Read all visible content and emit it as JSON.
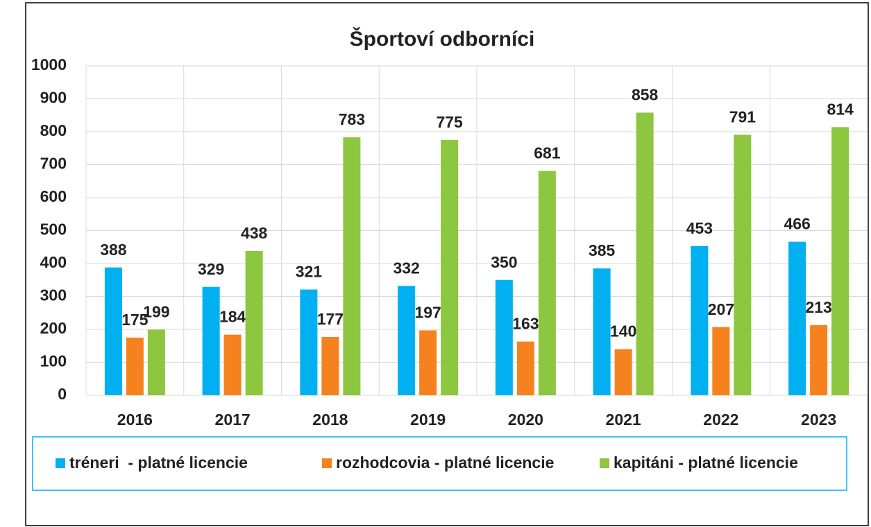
{
  "chart_data": {
    "type": "bar",
    "title": "Športoví odborníci",
    "categories": [
      "2016",
      "2017",
      "2018",
      "2019",
      "2020",
      "2021",
      "2022",
      "2023"
    ],
    "series": [
      {
        "name": "tréneri  - platné licencie",
        "color": "#00b0f0",
        "values": [
          388,
          329,
          321,
          332,
          350,
          385,
          453,
          466
        ]
      },
      {
        "name": "rozhodcovia - platné licencie",
        "color": "#f5821f",
        "values": [
          175,
          184,
          177,
          197,
          163,
          140,
          207,
          213
        ]
      },
      {
        "name": "kapitáni - platné licencie",
        "color": "#8dc63f",
        "values": [
          199,
          438,
          783,
          775,
          681,
          858,
          791,
          814
        ]
      }
    ],
    "ylim": [
      0,
      1000
    ],
    "yticks": [
      0,
      100,
      200,
      300,
      400,
      500,
      600,
      700,
      800,
      900,
      1000
    ],
    "grid": true,
    "legend": "bottom"
  }
}
